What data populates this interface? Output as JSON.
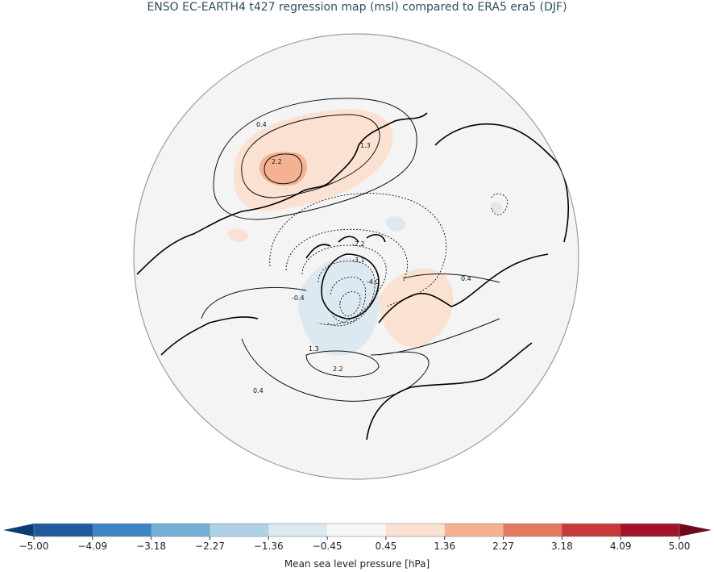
{
  "title": "ENSO EC-EARTH4 t427 regression map (msl) compared to ERA5 era5 (DJF)",
  "colorbar": {
    "label": "Mean sea level pressure [hPa]",
    "ticks": [
      "-5.00",
      "-4.09",
      "-3.18",
      "-2.27",
      "-1.36",
      "-0.45",
      "0.45",
      "1.36",
      "2.27",
      "3.18",
      "4.09",
      "5.00"
    ],
    "colors": [
      "#1f5a9c",
      "#3a85c2",
      "#72aed6",
      "#aed1e6",
      "#dde9f1",
      "#f7f7f7",
      "#fbe1d2",
      "#f4b293",
      "#e27a60",
      "#c83a3a",
      "#a3142a"
    ],
    "extend_low_color": "#0b3d73",
    "extend_high_color": "#6e0a1e"
  },
  "contour_labels": {
    "pacific_outer": "0.4",
    "pacific_mid": "1.3",
    "pacific_inner": "2.2",
    "arctic_outer": "-2.2",
    "arctic_a": "-3.1",
    "arctic_b": "-4.0",
    "arctic_c": "-0.4",
    "atlantic_a": "1.3",
    "atlantic_b": "2.2",
    "atlantic_c": "0.4",
    "eurasia": "0.4"
  },
  "map": {
    "projection": "north-polar-stereographic",
    "background_color": "#f4f4f4"
  }
}
